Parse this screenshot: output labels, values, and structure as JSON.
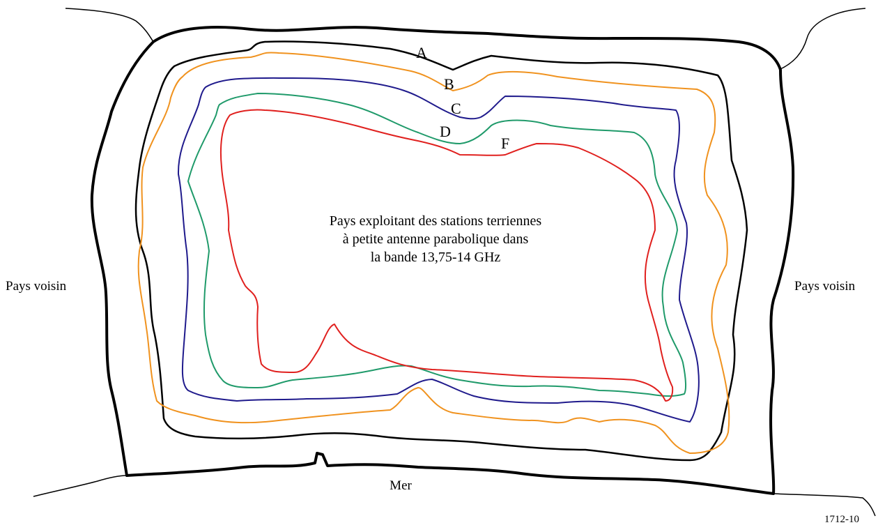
{
  "diagram": {
    "center_text": [
      "Pays exploitant des stations terriennes",
      "à petite antenne parabolique dans",
      "la bande 13,75-14 GHz"
    ],
    "left_neighbor": "Pays voisin",
    "right_neighbor": "Pays voisin",
    "sea_label": "Mer",
    "figure_id": "1712-10",
    "contours": [
      {
        "label": "A",
        "color": "#000000"
      },
      {
        "label": "B",
        "color": "#f0921e"
      },
      {
        "label": "C",
        "color": "#1f1a8c"
      },
      {
        "label": "D",
        "color": "#1f9a6a"
      },
      {
        "label": "F",
        "color": "#e0201e"
      }
    ],
    "border_color": "#000000"
  }
}
